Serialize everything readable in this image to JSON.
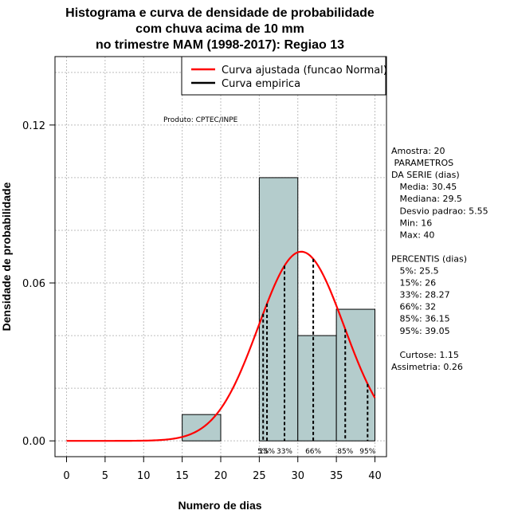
{
  "chart_data": {
    "type": "histogram",
    "title_lines": [
      "Histograma e curva de densidade de probabilidade",
      "com chuva acima de 10 mm",
      "no trimestre MAM (1998-2017): Regiao 13"
    ],
    "xlabel": "Numero de dias",
    "ylabel": "Densidade de probabilidade",
    "xlim": [
      -1.5,
      41.5
    ],
    "ylim": [
      -0.006,
      0.146
    ],
    "x_ticks": [
      0,
      5,
      10,
      15,
      20,
      25,
      30,
      35,
      40
    ],
    "y_ticks": [
      0.0,
      0.06,
      0.12
    ],
    "y_tick_labels": [
      "0.00",
      "0.06",
      "0.12"
    ],
    "grid": true,
    "bins": [
      {
        "x0": 15,
        "x1": 20,
        "density": 0.01
      },
      {
        "x0": 20,
        "x1": 25,
        "density": 0.0
      },
      {
        "x0": 25,
        "x1": 30,
        "density": 0.1
      },
      {
        "x0": 30,
        "x1": 35,
        "density": 0.04
      },
      {
        "x0": 35,
        "x1": 40,
        "density": 0.05
      }
    ],
    "fitted_curve": {
      "distribution": "normal",
      "mean": 30.45,
      "sd": 5.55,
      "x_range": [
        0,
        40
      ],
      "color": "#ff0000"
    },
    "percentile_lines": [
      {
        "x": 25.5,
        "label": "5%"
      },
      {
        "x": 26,
        "label": "15%"
      },
      {
        "x": 28.27,
        "label": "33%"
      },
      {
        "x": 32,
        "label": "66%"
      },
      {
        "x": 36.15,
        "label": "85%"
      },
      {
        "x": 39.05,
        "label": "95%"
      }
    ],
    "legend": {
      "position": "top-right",
      "entries": [
        {
          "label": "Curva ajustada (funcao Normal)",
          "color": "#ff0000"
        },
        {
          "label": "Curva empirica",
          "color": "#000000"
        }
      ]
    },
    "product_label": "Produto: CPTEC/INPE",
    "stats_lines": [
      "Amostra: 20",
      " PARAMETROS",
      "DA SERIE (dias)",
      "   Media: 30.45",
      "   Mediana: 29.5",
      "   Desvio padrao: 5.55",
      "   Min: 16",
      "   Max: 40",
      "",
      "PERCENTIS (dias)",
      "   5%: 25.5",
      "   15%: 26",
      "   33%: 28.27",
      "   66%: 32",
      "   85%: 36.15",
      "   95%: 39.05",
      "",
      "   Curtose: 1.15",
      "Assimetria: 0.26"
    ],
    "colors": {
      "bar_fill": "#b4cccc",
      "curve": "#ff0000",
      "grid": "#bdbdbd"
    }
  }
}
